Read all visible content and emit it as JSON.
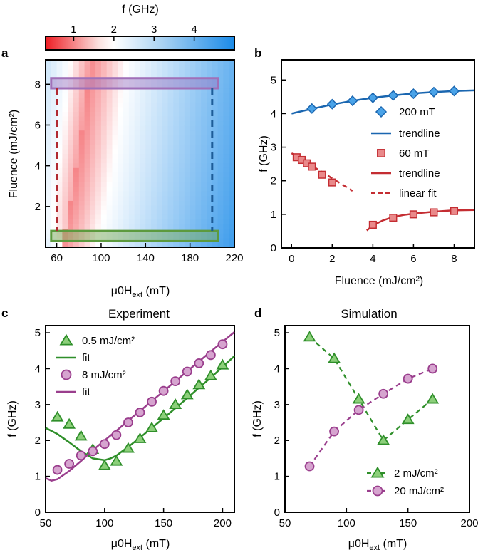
{
  "colors": {
    "blue": "#1a66b0",
    "blue_fill": "#4aa3e8",
    "red": "#c42d32",
    "red_fill": "#e9898a",
    "green": "#2f8f2a",
    "green_fill": "#8ccf7a",
    "purple": "#9a3e8d",
    "purple_fill": "#d6a4cf"
  },
  "chart_data": [
    {
      "panel": "a",
      "type": "heatmap",
      "xlabel_main": "μ0H",
      "xlabel_sub": "ext",
      "xlabel_unit": " (mT)",
      "ylabel": "Fluence (mJ/cm²)",
      "colorbar_label": "f (GHz)",
      "colorbar_ticks": [
        "1",
        "2",
        "3",
        "4"
      ],
      "colorbar_range": [
        0.3,
        5.0
      ],
      "xlim": [
        50,
        220
      ],
      "ylim": [
        0,
        9.2
      ],
      "xticks": [
        60,
        100,
        140,
        180,
        220
      ],
      "yticks": [
        2,
        4,
        6,
        8
      ],
      "highlights": [
        {
          "name": "high-fluence",
          "x": [
            55,
            205
          ],
          "y": [
            7.8,
            8.3
          ]
        },
        {
          "name": "low-fluence",
          "x": [
            55,
            205
          ],
          "y": [
            0.3,
            0.8
          ]
        }
      ],
      "markers_x": [
        60,
        200
      ]
    },
    {
      "panel": "b",
      "type": "line",
      "xlabel": "Fluence (mJ/cm²)",
      "ylabel": "f (GHz)",
      "xlim": [
        -0.5,
        9
      ],
      "ylim": [
        0,
        5.6
      ],
      "xticks": [
        0,
        2,
        4,
        6,
        8
      ],
      "yticks": [
        0,
        1,
        2,
        3,
        4,
        5
      ],
      "legend": [
        "200 mT",
        "trendline",
        "60 mT",
        "trendline",
        "linear fit"
      ],
      "series": [
        {
          "name": "200 mT",
          "x": [
            1,
            2,
            3,
            4,
            5,
            6,
            7,
            8
          ],
          "y": [
            4.15,
            4.28,
            4.38,
            4.47,
            4.54,
            4.59,
            4.64,
            4.67
          ]
        },
        {
          "name": "trendline 200 mT",
          "x": [
            0,
            1,
            2,
            3,
            4,
            5,
            6,
            7,
            8,
            9
          ],
          "y": [
            4.0,
            4.14,
            4.27,
            4.38,
            4.47,
            4.54,
            4.6,
            4.64,
            4.67,
            4.69
          ]
        },
        {
          "name": "60 mT",
          "x": [
            0.25,
            0.5,
            0.75,
            1.0,
            1.5,
            2.0,
            4.0,
            5.0,
            6.0,
            7.0,
            8.0
          ],
          "y": [
            2.7,
            2.62,
            2.52,
            2.42,
            2.18,
            1.95,
            0.69,
            0.9,
            1.0,
            1.06,
            1.1
          ]
        },
        {
          "name": "trendline 60 mT",
          "x": [
            3.7,
            4,
            4.5,
            5,
            5.5,
            6,
            7,
            8,
            9
          ],
          "y": [
            0.52,
            0.67,
            0.82,
            0.92,
            0.98,
            1.02,
            1.08,
            1.12,
            1.13
          ]
        },
        {
          "name": "linear fit",
          "x": [
            0,
            3
          ],
          "y": [
            2.82,
            1.7
          ]
        }
      ]
    },
    {
      "panel": "c",
      "type": "line",
      "title": "Experiment",
      "xlabel_main": "μ0H",
      "xlabel_sub": "ext",
      "xlabel_unit": " (mT)",
      "ylabel": "f (GHz)",
      "xlim": [
        50,
        210
      ],
      "ylim": [
        0,
        5.2
      ],
      "xticks": [
        50,
        100,
        150,
        200
      ],
      "yticks": [
        0,
        1,
        2,
        3,
        4,
        5
      ],
      "legend": [
        "0.5 mJ/cm²",
        "fit",
        "8 mJ/cm²",
        "fit"
      ],
      "series": [
        {
          "name": "0.5 mJ/cm²",
          "x": [
            60,
            70,
            80,
            90,
            100,
            110,
            120,
            130,
            140,
            150,
            160,
            170,
            180,
            190,
            200
          ],
          "y": [
            2.65,
            2.45,
            2.12,
            1.75,
            1.3,
            1.42,
            1.78,
            2.05,
            2.35,
            2.7,
            3.0,
            3.27,
            3.55,
            3.8,
            4.1
          ]
        },
        {
          "name": "fit 0.5",
          "x": [
            50,
            60,
            70,
            80,
            90,
            100,
            105,
            110,
            120,
            130,
            140,
            150,
            160,
            170,
            180,
            190,
            200,
            210
          ],
          "y": [
            2.35,
            2.18,
            1.95,
            1.7,
            1.5,
            1.45,
            1.5,
            1.58,
            1.82,
            2.08,
            2.35,
            2.62,
            2.9,
            3.18,
            3.47,
            3.75,
            4.05,
            4.35
          ]
        },
        {
          "name": "8 mJ/cm²",
          "x": [
            60,
            70,
            80,
            90,
            100,
            110,
            120,
            130,
            140,
            150,
            160,
            170,
            180,
            190,
            200
          ],
          "y": [
            1.18,
            1.35,
            1.58,
            1.7,
            1.9,
            2.15,
            2.5,
            2.78,
            3.08,
            3.38,
            3.65,
            3.92,
            4.15,
            4.38,
            4.68
          ]
        },
        {
          "name": "fit 8",
          "x": [
            50,
            55,
            60,
            70,
            80,
            90,
            100,
            110,
            120,
            130,
            140,
            150,
            160,
            170,
            180,
            190,
            200,
            210
          ],
          "y": [
            0.95,
            0.88,
            0.92,
            1.15,
            1.43,
            1.73,
            2.0,
            2.27,
            2.55,
            2.82,
            3.1,
            3.37,
            3.65,
            3.93,
            4.2,
            4.48,
            4.75,
            5.02
          ]
        }
      ]
    },
    {
      "panel": "d",
      "type": "line",
      "title": "Simulation",
      "xlabel_main": "μ0H",
      "xlabel_sub": "ext",
      "xlabel_unit": " (mT)",
      "ylabel": "f (GHz)",
      "xlim": [
        50,
        200
      ],
      "ylim": [
        0,
        5.2
      ],
      "xticks": [
        50,
        100,
        150,
        200
      ],
      "yticks": [
        0,
        1,
        2,
        3,
        4,
        5
      ],
      "legend": [
        "2 mJ/cm²",
        "20 mJ/cm²"
      ],
      "series": [
        {
          "name": "2 mJ/cm²",
          "x": [
            70,
            90,
            110,
            130,
            150,
            170
          ],
          "y": [
            4.88,
            4.28,
            3.15,
            2.0,
            2.58,
            3.15
          ]
        },
        {
          "name": "20 mJ/cm²",
          "x": [
            70,
            90,
            110,
            130,
            150,
            170
          ],
          "y": [
            1.28,
            2.25,
            2.85,
            3.3,
            3.72,
            4.0
          ]
        }
      ]
    }
  ]
}
